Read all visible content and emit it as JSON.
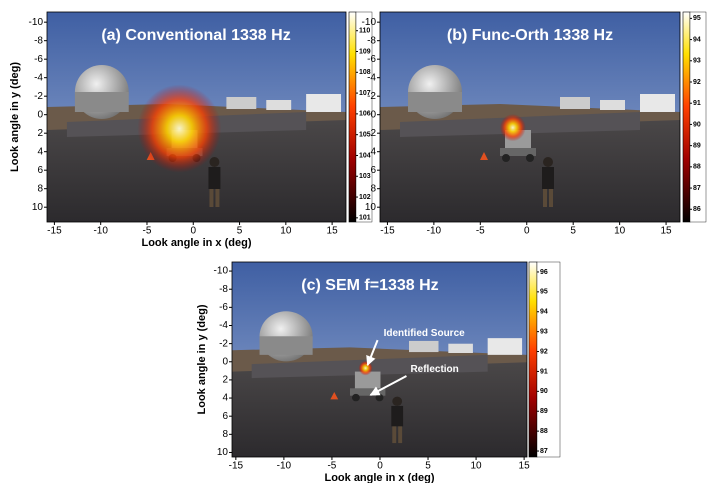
{
  "chart_data": [
    {
      "type": "heatmap",
      "title": "(a) Conventional 1338 Hz",
      "x_label": "Look angle in x (deg)",
      "y_label": "Look angle in y (deg)",
      "xlim": [
        -15.8,
        16.5
      ],
      "ylim": [
        -11.1,
        11.6
      ],
      "xticks": [
        -15,
        -10,
        -5,
        0,
        5,
        10,
        15
      ],
      "yticks": [
        -10,
        -8,
        -6,
        -4,
        -2,
        0,
        2,
        4,
        6,
        8,
        10
      ],
      "colorbar": {
        "clim": [
          100.8,
          110.9
        ],
        "ticks": [
          101,
          102,
          103,
          104,
          105,
          106,
          107,
          108,
          109,
          110
        ]
      },
      "sources": [
        {
          "x": -1.5,
          "y": 1.5
        }
      ]
    },
    {
      "type": "heatmap",
      "title": "(b) Func-Orth 1338 Hz",
      "xlim": [
        -15.8,
        16.5
      ],
      "ylim": [
        -11.1,
        11.6
      ],
      "xticks": [
        -15,
        -10,
        -5,
        0,
        5,
        10,
        15
      ],
      "yticks": [
        -10,
        -8,
        -6,
        -4,
        -2,
        0,
        2,
        4,
        6,
        8,
        10
      ],
      "colorbar": {
        "clim": [
          85.4,
          95.3
        ],
        "ticks": [
          86,
          87,
          88,
          89,
          90,
          91,
          92,
          93,
          94,
          95
        ]
      },
      "sources": [
        {
          "x": -1.5,
          "y": 1.4
        }
      ]
    },
    {
      "type": "heatmap",
      "title": "(c) SEM f=1338 Hz",
      "x_label": "Look angle in x (deg)",
      "y_label": "Look angle in y (deg)",
      "xlim": [
        -15.4,
        15.3
      ],
      "ylim": [
        -11,
        10.5
      ],
      "xticks": [
        -15,
        -10,
        -5,
        0,
        5,
        10,
        15
      ],
      "yticks": [
        -10,
        -8,
        -6,
        -4,
        -2,
        0,
        2,
        4,
        6,
        8,
        10
      ],
      "colorbar": {
        "clim": [
          86.7,
          96.5
        ],
        "ticks": [
          87,
          88,
          89,
          90,
          91,
          92,
          93,
          94,
          95,
          96
        ]
      },
      "sources": [
        {
          "x": -1.5,
          "y": 0.7
        }
      ],
      "annotations": [
        {
          "text": "Identified Source",
          "x": -1.5,
          "y": 0.7
        },
        {
          "text": "Reflection",
          "x": -1.2,
          "y": 4.0
        }
      ]
    }
  ]
}
